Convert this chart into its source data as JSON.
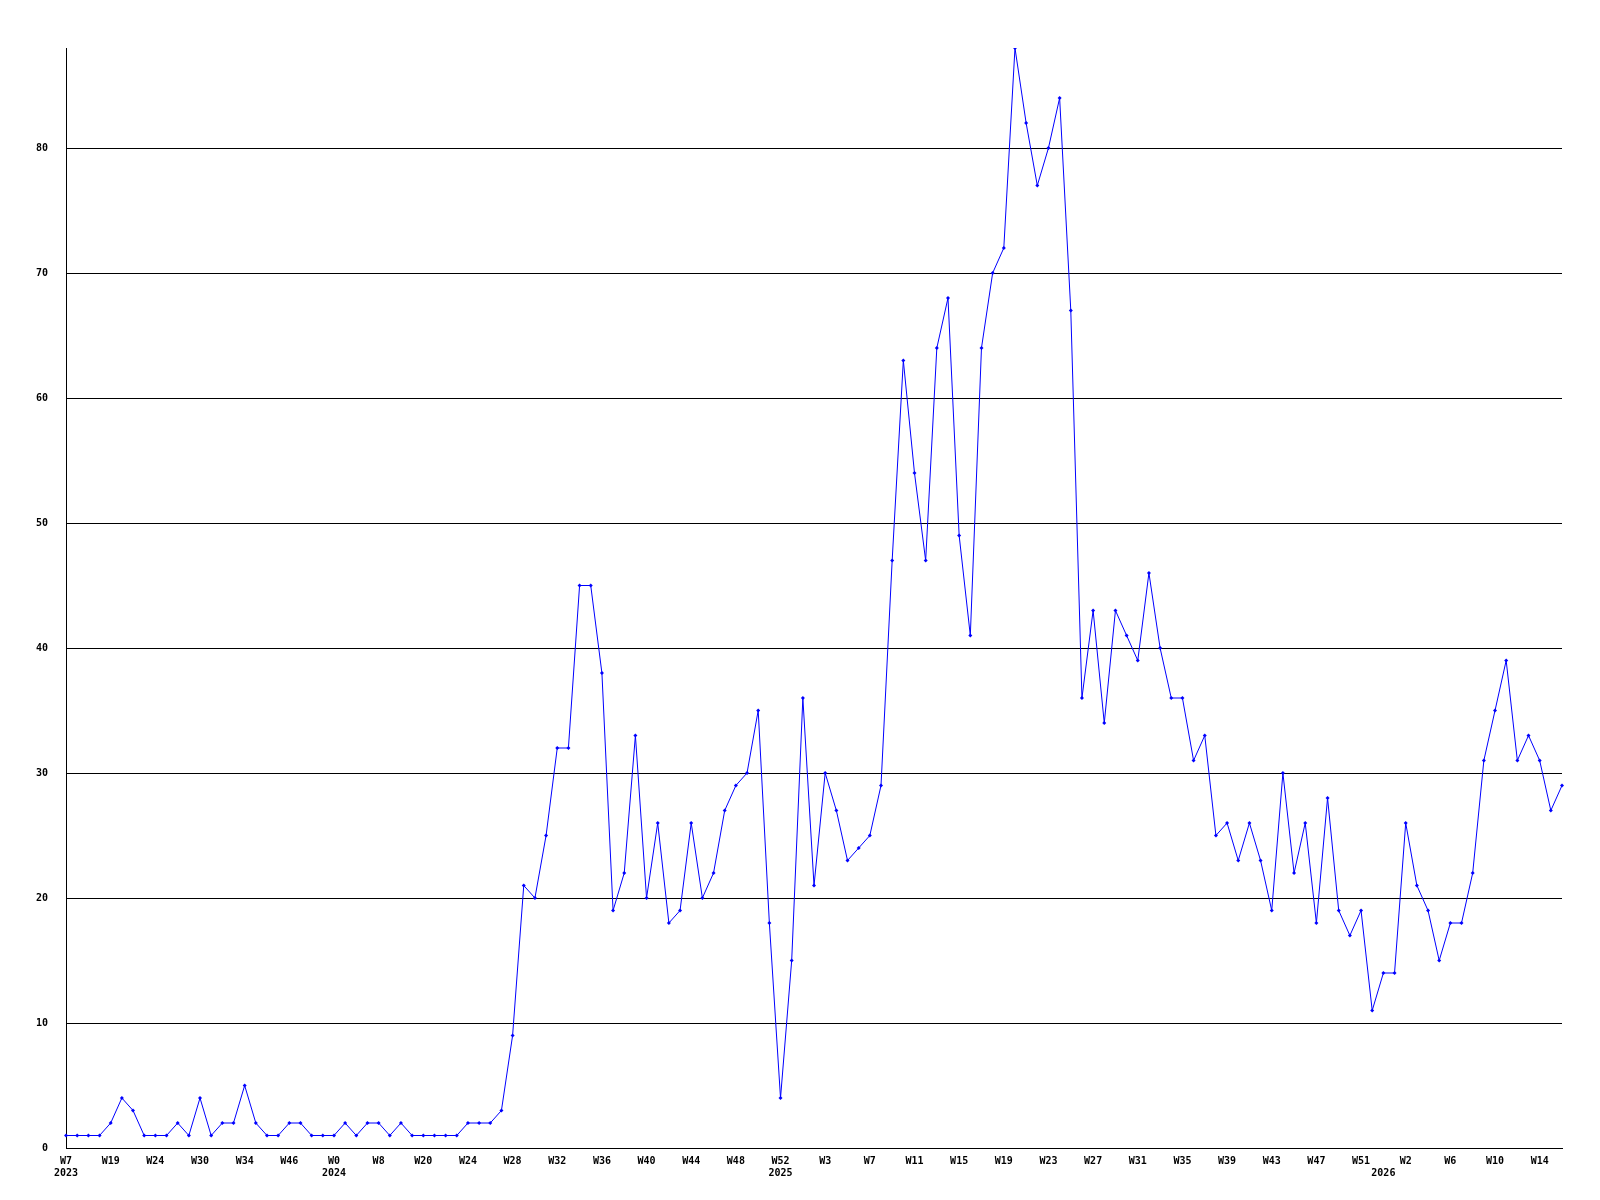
{
  "chart_data": {
    "type": "line",
    "categories": [
      "W7\n2023",
      null,
      null,
      null,
      "W19",
      null,
      null,
      null,
      "W24",
      null,
      null,
      null,
      "W30",
      null,
      null,
      null,
      "W34",
      null,
      null,
      null,
      "W46",
      null,
      null,
      null,
      "W0\n2024",
      null,
      null,
      null,
      "W8",
      null,
      null,
      null,
      "W20",
      null,
      null,
      null,
      "W24",
      null,
      null,
      null,
      "W28",
      null,
      null,
      null,
      "W32",
      null,
      null,
      null,
      "W36",
      null,
      null,
      null,
      "W40",
      null,
      null,
      null,
      "W44",
      null,
      null,
      null,
      "W48",
      null,
      null,
      null,
      "W52\n2025",
      null,
      null,
      null,
      "W3",
      null,
      null,
      null,
      "W7",
      null,
      null,
      null,
      "W11",
      null,
      null,
      null,
      "W15",
      null,
      null,
      null,
      "W19",
      null,
      null,
      null,
      "W23",
      null,
      null,
      null,
      "W27",
      null,
      null,
      null,
      "W31",
      null,
      null,
      null,
      "W35",
      null,
      null,
      null,
      "W39",
      null,
      null,
      null,
      "W43",
      null,
      null,
      null,
      "W47",
      null,
      null,
      null,
      "W51",
      null,
      "\n2026",
      null,
      "W2",
      null,
      null,
      null,
      "W6",
      null,
      null,
      null,
      "W10",
      null,
      null,
      null,
      "W14",
      null,
      null
    ],
    "series": [
      {
        "color": "#0000ff",
        "values": [
          1,
          1,
          1,
          1,
          2,
          4,
          3,
          1,
          1,
          1,
          2,
          1,
          4,
          1,
          2,
          2,
          5,
          2,
          1,
          1,
          2,
          2,
          1,
          1,
          1,
          2,
          1,
          2,
          2,
          1,
          2,
          1,
          1,
          1,
          1,
          1,
          2,
          2,
          2,
          3,
          9,
          21,
          20,
          25,
          32,
          32,
          45,
          45,
          38,
          19,
          22,
          33,
          20,
          26,
          18,
          19,
          26,
          20,
          22,
          27,
          29,
          30,
          35,
          18,
          4,
          15,
          36,
          21,
          30,
          27,
          23,
          24,
          25,
          29,
          47,
          63,
          54,
          47,
          64,
          68,
          49,
          41,
          64,
          70,
          72,
          88,
          82,
          77,
          80,
          84,
          67,
          36,
          43,
          34,
          43,
          41,
          39,
          46,
          40,
          36,
          36,
          31,
          33,
          25,
          26,
          23,
          26,
          23,
          19,
          30,
          22,
          26,
          18,
          28,
          19,
          17,
          19,
          11,
          14,
          14,
          26,
          21,
          19,
          15,
          18,
          18,
          22,
          31,
          35,
          39,
          31,
          33,
          31,
          27,
          29
        ]
      }
    ],
    "ylim": [
      0,
      88
    ],
    "yticks": [
      0,
      10,
      20,
      30,
      40,
      50,
      60,
      70,
      80
    ],
    "grid": "y",
    "marker": "diamond",
    "line_style": "solid"
  }
}
